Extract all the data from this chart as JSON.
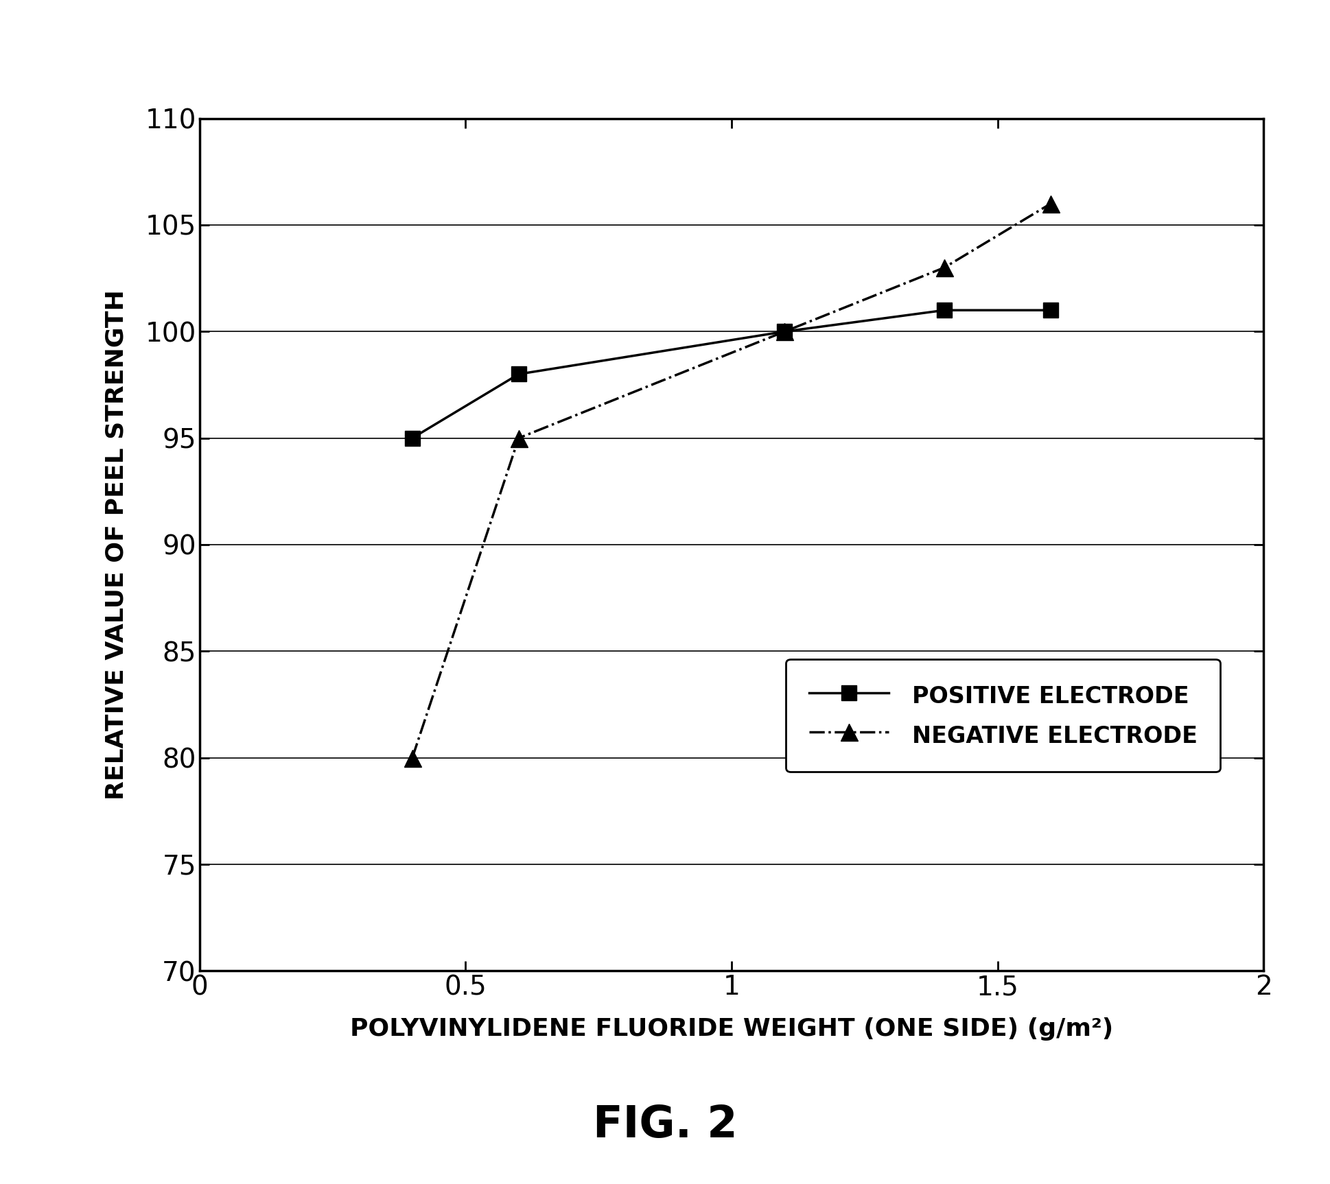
{
  "positive_x": [
    0.4,
    0.6,
    1.1,
    1.4,
    1.6
  ],
  "positive_y": [
    95,
    98,
    100,
    101,
    101
  ],
  "negative_x": [
    0.4,
    0.6,
    1.1,
    1.4,
    1.6
  ],
  "negative_y": [
    80,
    95,
    100,
    103,
    106
  ],
  "xlim": [
    0,
    2
  ],
  "ylim": [
    70,
    110
  ],
  "xticks": [
    0,
    0.5,
    1.0,
    1.5,
    2.0
  ],
  "yticks": [
    70,
    75,
    80,
    85,
    90,
    95,
    100,
    105,
    110
  ],
  "xlabel": "POLYVINYLIDENE FLUORIDE WEIGHT (ONE SIDE) (g/m²)",
  "ylabel": "RELATIVE VALUE OF PEEL STRENGTH",
  "legend_positive": "POSITIVE ELECTRODE",
  "legend_negative": "NEGATIVE ELECTRODE",
  "figure_label": "FIG. 2",
  "background_color": "#ffffff",
  "line_color": "#000000",
  "tick_fontsize": 28,
  "label_fontsize": 26,
  "legend_fontsize": 24,
  "fig_label_fontsize": 46
}
